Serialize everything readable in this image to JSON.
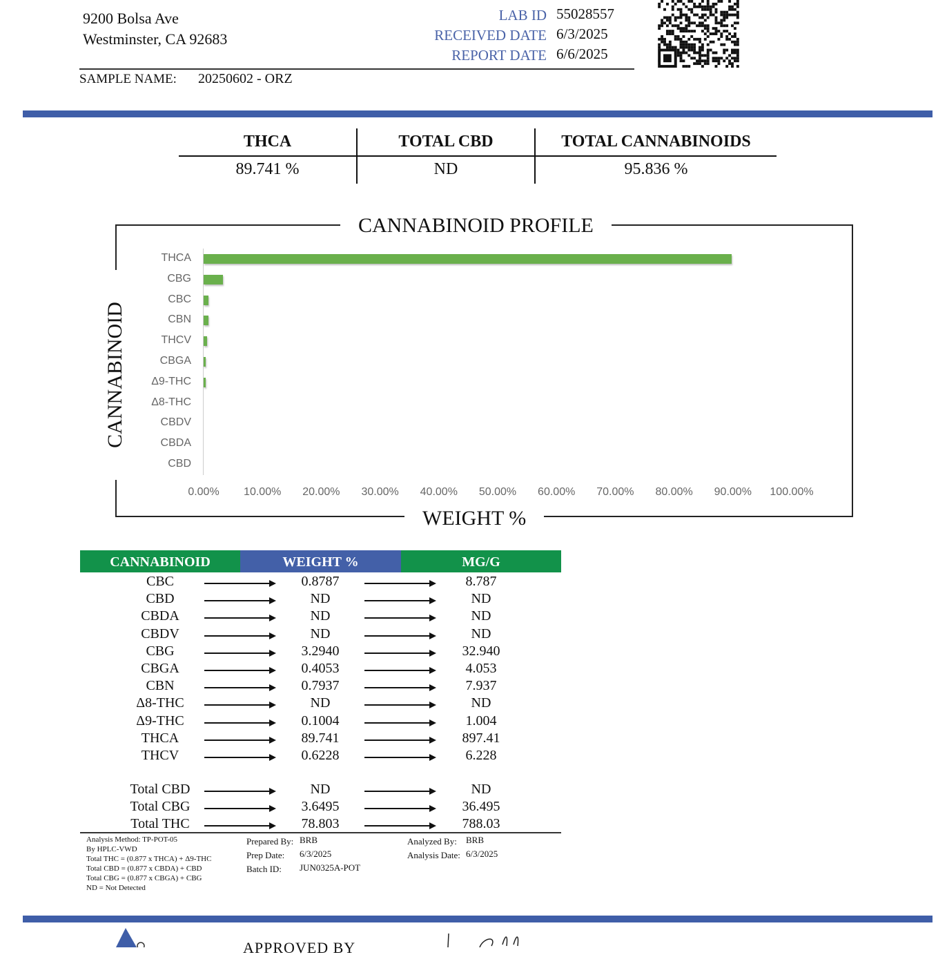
{
  "header": {
    "address_line1": "9200 Bolsa Ave",
    "address_line2": "Westminster, CA 92683",
    "lab_id_label": "LAB ID",
    "lab_id": "55028557",
    "received_label": "RECEIVED DATE",
    "received": "6/3/2025",
    "report_label": "REPORT DATE",
    "report": "6/6/2025",
    "sample_label": "SAMPLE NAME:",
    "sample": "20250602 - ORZ",
    "qr_icon": "qr-code"
  },
  "summary": [
    {
      "label": "THCA",
      "value": "89.741 %"
    },
    {
      "label": "TOTAL CBD",
      "value": "ND"
    },
    {
      "label": "TOTAL CANNABINOIDS",
      "value": "95.836 %"
    }
  ],
  "chart_data": {
    "type": "bar",
    "orientation": "horizontal",
    "title": "CANNABINOID PROFILE",
    "xlabel": "WEIGHT %",
    "ylabel": "CANNABINOID",
    "categories": [
      "THCA",
      "CBG",
      "CBC",
      "CBN",
      "THCV",
      "CBGA",
      "Δ9-THC",
      "Δ8-THC",
      "CBDV",
      "CBDA",
      "CBD"
    ],
    "values": [
      89.741,
      3.294,
      0.8787,
      0.7937,
      0.6228,
      0.4053,
      0.1004,
      0,
      0,
      0,
      0
    ],
    "xlim": [
      0,
      100
    ],
    "xticks": [
      "0.00%",
      "10.00%",
      "20.00%",
      "30.00%",
      "40.00%",
      "50.00%",
      "60.00%",
      "70.00%",
      "80.00%",
      "90.00%",
      "100.00%"
    ],
    "bar_color": "#6ab04c",
    "grid": false
  },
  "table": {
    "headers": [
      "CANNABINOID",
      "WEIGHT %",
      "MG/G"
    ],
    "header_colors": [
      "#12924a",
      "#4360a8",
      "#12924a"
    ],
    "rows": [
      [
        "CBC",
        "0.8787",
        "8.787"
      ],
      [
        "CBD",
        "ND",
        "ND"
      ],
      [
        "CBDA",
        "ND",
        "ND"
      ],
      [
        "CBDV",
        "ND",
        "ND"
      ],
      [
        "CBG",
        "3.2940",
        "32.940"
      ],
      [
        "CBGA",
        "0.4053",
        "4.053"
      ],
      [
        "CBN",
        "0.7937",
        "7.937"
      ],
      [
        "Δ8-THC",
        "ND",
        "ND"
      ],
      [
        "Δ9-THC",
        "0.1004",
        "1.004"
      ],
      [
        "THCA",
        "89.741",
        "897.41"
      ],
      [
        "THCV",
        "0.6228",
        "6.228"
      ]
    ],
    "totals": [
      [
        "Total CBD",
        "ND",
        "ND"
      ],
      [
        "Total CBG",
        "3.6495",
        "36.495"
      ],
      [
        "Total THC",
        "78.803",
        "788.03"
      ]
    ]
  },
  "notes": [
    "Analysis Method: TP-POT-05",
    "By HPLC-VWD",
    "Total THC = (0.877 x  THCA) + Δ9-THC",
    "Total CBD = (0.877 x  CBDA) + CBD",
    "Total CBG = (0.877 x  CBGA) + CBG",
    "ND = Not Detected"
  ],
  "meta": {
    "prepared_by_label": "Prepared By:",
    "prepared_by": "BRB",
    "prep_date_label": "Prep Date:",
    "prep_date": "6/3/2025",
    "batch_label": "Batch ID:",
    "batch": "JUN0325A-POT",
    "analyzed_by_label": "Analyzed By:",
    "analyzed_by": "BRB",
    "analysis_date_label": "Analysis Date:",
    "analysis_date": "6/3/2025"
  },
  "footer": {
    "approved_label": "APPROVED BY"
  },
  "colors": {
    "band": "#3f5ea8",
    "label_blue": "#4a63a8"
  }
}
